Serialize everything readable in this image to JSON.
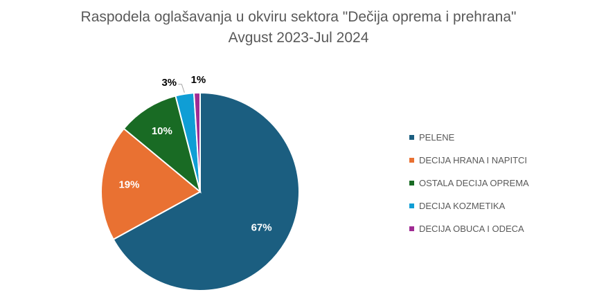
{
  "chart_data": {
    "type": "pie",
    "title": "Raspodela oglašavanja u okviru sektora \"Dečija oprema i prehrana\"",
    "subtitle": "Avgust 2023-Jul 2024",
    "slices": [
      {
        "label": "PELENE",
        "value": 67,
        "display": "67%",
        "color": "#1B5E80"
      },
      {
        "label": "DECIJA HRANA I NAPITCI",
        "value": 19,
        "display": "19%",
        "color": "#E97132"
      },
      {
        "label": "OSTALA DECIJA OPREMA",
        "value": 10,
        "display": "10%",
        "color": "#196B24"
      },
      {
        "label": "DECIJA KOZMETIKA",
        "value": 3,
        "display": "3%",
        "color": "#0F9ED5"
      },
      {
        "label": "DECIJA OBUCA I ODECA",
        "value": 1,
        "display": "1%",
        "color": "#A02B93"
      }
    ],
    "legend_position": "right"
  }
}
